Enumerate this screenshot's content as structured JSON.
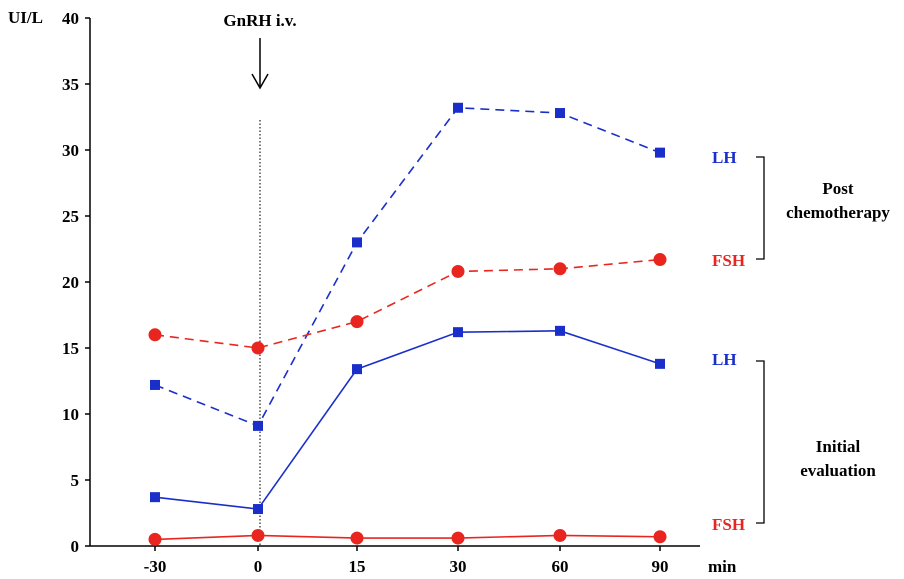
{
  "chart_data": {
    "type": "line",
    "ylabel": "UI/L",
    "xlabel": "min",
    "categories": [
      "-30",
      "0",
      "15",
      "30",
      "60",
      "90"
    ],
    "ylim": [
      0,
      40
    ],
    "yticks": [
      0,
      5,
      10,
      15,
      20,
      25,
      30,
      35,
      40
    ],
    "grid": false,
    "annotations": {
      "arrow_label": "GnRH i.v.",
      "arrow_at_category": "0",
      "vertical_line_at_category": "0"
    },
    "series": [
      {
        "name": "LH",
        "group": "Post chemotherapy",
        "values": [
          12.2,
          9.1,
          23.0,
          33.2,
          32.8,
          29.8
        ],
        "color": "#1a2fc9",
        "dashed": true,
        "marker": "square"
      },
      {
        "name": "FSH",
        "group": "Post chemotherapy",
        "values": [
          16.0,
          15.0,
          17.0,
          20.8,
          21.0,
          21.7
        ],
        "color": "#e8261f",
        "dashed": true,
        "marker": "circle"
      },
      {
        "name": "LH",
        "group": "Initial evaluation",
        "values": [
          3.7,
          2.8,
          13.4,
          16.2,
          16.3,
          13.8
        ],
        "color": "#1a2fc9",
        "dashed": false,
        "marker": "square"
      },
      {
        "name": "FSH",
        "group": "Initial evaluation",
        "values": [
          0.5,
          0.8,
          0.6,
          0.6,
          0.8,
          0.7
        ],
        "color": "#e8261f",
        "dashed": false,
        "marker": "circle"
      }
    ],
    "groups": [
      {
        "label_lines": [
          "Post",
          "chemotherapy"
        ]
      },
      {
        "label_lines": [
          "Initial",
          "evaluation"
        ]
      }
    ]
  }
}
